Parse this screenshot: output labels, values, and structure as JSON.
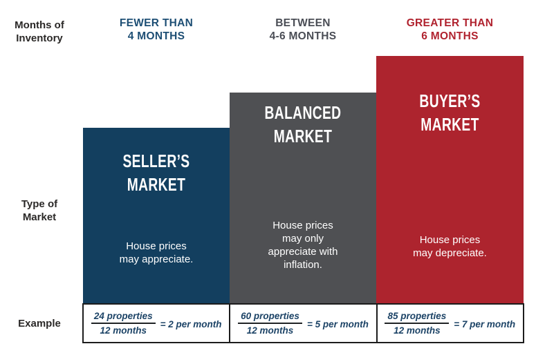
{
  "row_labels": {
    "inventory": "Months of\nInventory",
    "market_type": "Type of\nMarket",
    "example": "Example"
  },
  "colors": {
    "seller_bar_blue": "#133f5f",
    "balanced_bar_gray": "#4f5053",
    "buyer_bar_red": "#ad242e",
    "header_blue": "#1d4e74",
    "header_gray": "#4a4d55",
    "header_red": "#b0222e",
    "row_label_dark": "#2a2827",
    "example_text_navy": "#1c4366",
    "table_border_black": "#1c1c1c",
    "bar_text_white": "#ffffff"
  },
  "columns": [
    {
      "id": "seller",
      "inventory_header": "FEWER THAN\n4 MONTHS",
      "market_title": "SELLER’S\nMARKET",
      "description": "House prices\nmay appreciate.",
      "example": {
        "numerator": "24 properties",
        "denominator": "12 months",
        "result": "= 2 per month"
      }
    },
    {
      "id": "balanced",
      "inventory_header": "BETWEEN\n4-6 MONTHS",
      "market_title": "BALANCED\nMARKET",
      "description": "House prices\nmay only\nappreciate with\ninflation.",
      "example": {
        "numerator": "60 properties",
        "denominator": "12 months",
        "result": "= 5 per month"
      }
    },
    {
      "id": "buyer",
      "inventory_header": "GREATER THAN\n6 MONTHS",
      "market_title": "BUYER’S\nMARKET",
      "description": "House prices\nmay depreciate.",
      "example": {
        "numerator": "85 properties",
        "denominator": "12 months",
        "result": "= 7 per month"
      }
    }
  ]
}
